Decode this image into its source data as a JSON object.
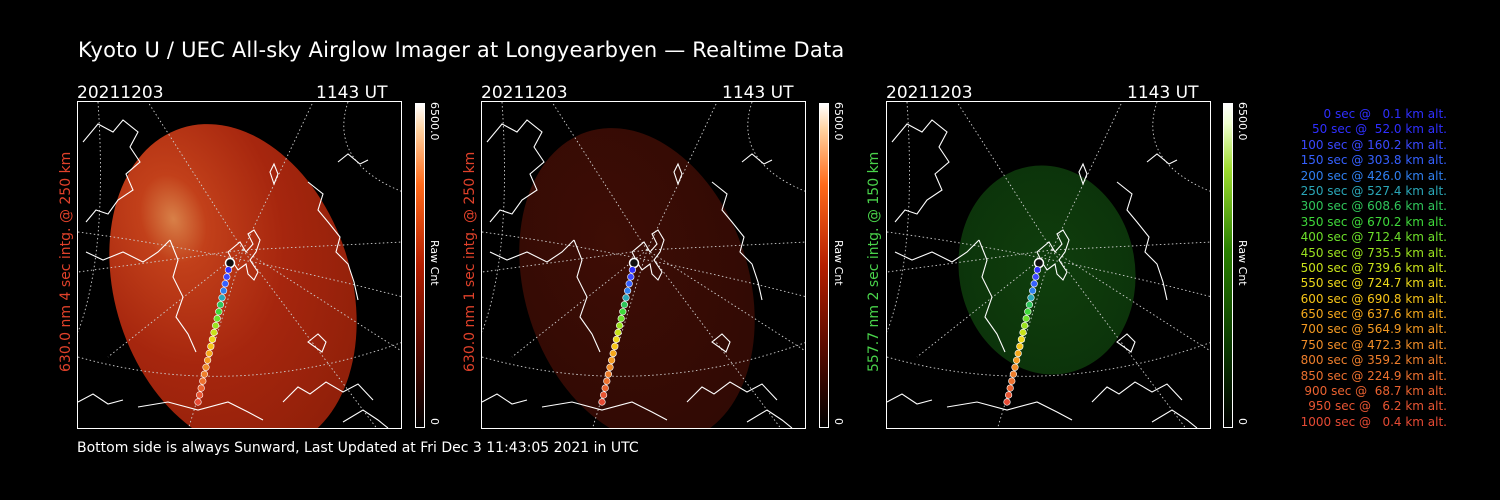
{
  "title": "Kyoto U / UEC All-sky Airglow Imager at Longyearbyen — Realtime Data",
  "footer": "Bottom side is always Sunward, Last Updated at Fri Dec  3 11:43:05 2021 in UTC",
  "colors": {
    "red_label": "#e0412a",
    "green_label": "#49d24a",
    "white": "#ffffff",
    "background": "#000000"
  },
  "panels": [
    {
      "date": "20211203",
      "time": "1143 UT",
      "side_label": "630.0 nm 4 sec intg. @ 250 km",
      "label_color": "#e0412a",
      "cbar_max": "6500.0",
      "cbar_unit": "Raw Cnt",
      "cbar_min": "0",
      "colormap": "red",
      "brightness": "bright"
    },
    {
      "date": "20211203",
      "time": "1143 UT",
      "side_label": "630.0 nm 1 sec intg. @ 250 km",
      "label_color": "#e0412a",
      "cbar_max": "6500.0",
      "cbar_unit": "Raw Cnt",
      "cbar_min": "0",
      "colormap": "red",
      "brightness": "dim"
    },
    {
      "date": "20211203",
      "time": "1143 UT",
      "side_label": "557.7 nm 2 sec intg. @ 150 km",
      "label_color": "#49d24a",
      "cbar_max": "6500.0",
      "cbar_unit": "Raw Cnt",
      "cbar_min": "0",
      "colormap": "green",
      "brightness": "dim"
    }
  ],
  "legend": [
    {
      "text": "0 sec @   0.1 km alt.",
      "color": "#2f2fff"
    },
    {
      "text": "50 sec @  52.0 km alt.",
      "color": "#2f2fff"
    },
    {
      "text": "100 sec @ 160.2 km alt.",
      "color": "#3a48ff"
    },
    {
      "text": "150 sec @ 303.8 km alt.",
      "color": "#3560ff"
    },
    {
      "text": "200 sec @ 426.0 km alt.",
      "color": "#2f7ff0"
    },
    {
      "text": "250 sec @ 527.4 km alt.",
      "color": "#2aa7b8"
    },
    {
      "text": "300 sec @ 608.6 km alt.",
      "color": "#2fc55a"
    },
    {
      "text": "350 sec @ 670.2 km alt.",
      "color": "#3fd83a"
    },
    {
      "text": "400 sec @ 712.4 km alt.",
      "color": "#6ddf2a"
    },
    {
      "text": "450 sec @ 735.5 km alt.",
      "color": "#9be21f"
    },
    {
      "text": "500 sec @ 739.6 km alt.",
      "color": "#c8e21a"
    },
    {
      "text": "550 sec @ 724.7 km alt.",
      "color": "#ecd81a"
    },
    {
      "text": "600 sec @ 690.8 km alt.",
      "color": "#f6c418"
    },
    {
      "text": "650 sec @ 637.6 km alt.",
      "color": "#f5a81c"
    },
    {
      "text": "700 sec @ 564.9 km alt.",
      "color": "#f39a22"
    },
    {
      "text": "750 sec @ 472.3 km alt.",
      "color": "#f08d28"
    },
    {
      "text": "800 sec @ 359.2 km alt.",
      "color": "#ee7e2c"
    },
    {
      "text": "850 sec @ 224.9 km alt.",
      "color": "#ec702e"
    },
    {
      "text": "900 sec @  68.7 km alt.",
      "color": "#ea6230"
    },
    {
      "text": "950 sec @   6.2 km alt.",
      "color": "#e85532"
    },
    {
      "text": "1000 sec @   0.4 km alt.",
      "color": "#e64a34"
    }
  ]
}
